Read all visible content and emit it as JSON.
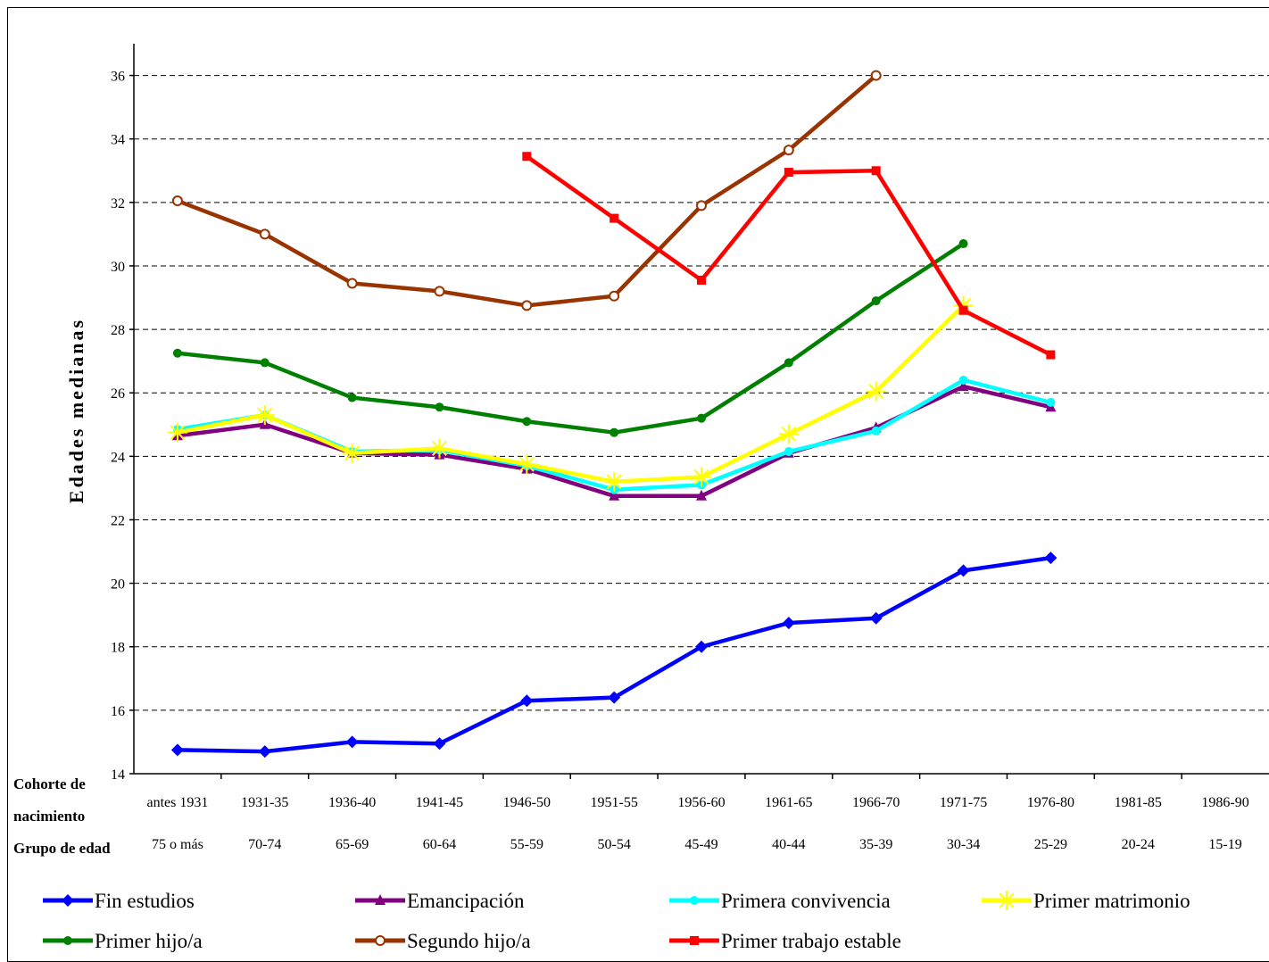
{
  "chart_data": {
    "type": "line",
    "ylabel": "Edades medianas",
    "ylim": [
      14,
      37
    ],
    "yticks": [
      14,
      16,
      18,
      20,
      22,
      24,
      26,
      28,
      30,
      32,
      34,
      36
    ],
    "grid": "horizontal dashed",
    "legend_position": "bottom",
    "row_labels": {
      "cohort": "Cohorte de nacimiento",
      "cohort_line1": "Cohorte de",
      "cohort_line2": "nacimiento",
      "age_group": "Grupo de edad"
    },
    "categories": [
      "antes 1931",
      "1931-35",
      "1936-40",
      "1941-45",
      "1946-50",
      "1951-55",
      "1956-60",
      "1961-65",
      "1966-70",
      "1971-75",
      "1976-80",
      "1981-85",
      "1986-90"
    ],
    "age_groups": [
      "75 o más",
      "70-74",
      "65-69",
      "60-64",
      "55-59",
      "50-54",
      "45-49",
      "40-44",
      "35-39",
      "30-34",
      "25-29",
      "20-24",
      "15-19"
    ],
    "series": [
      {
        "name": "Fin estudios",
        "color": "#0000FF",
        "marker": "diamond",
        "values": [
          14.75,
          14.7,
          15.0,
          14.95,
          16.3,
          16.4,
          18.0,
          18.75,
          18.9,
          20.4,
          20.8,
          null,
          null
        ]
      },
      {
        "name": "Emancipación",
        "color": "#800080",
        "marker": "triangle",
        "values": [
          24.65,
          25.0,
          24.1,
          24.05,
          23.6,
          22.75,
          22.75,
          24.1,
          24.9,
          26.2,
          25.55,
          null,
          null
        ]
      },
      {
        "name": "Primera convivencia",
        "color": "#00FFFF",
        "marker": "circle",
        "values": [
          24.85,
          25.3,
          24.15,
          24.2,
          23.7,
          22.95,
          23.1,
          24.15,
          24.8,
          26.4,
          25.7,
          null,
          null
        ]
      },
      {
        "name": "Primer matrimonio",
        "color": "#FFFF00",
        "marker": "asterisk",
        "values": [
          24.75,
          25.3,
          24.1,
          24.25,
          23.75,
          23.2,
          23.35,
          24.7,
          26.05,
          28.75,
          null,
          null,
          null
        ]
      },
      {
        "name": "Primer hijo/a",
        "color": "#008000",
        "marker": "circle",
        "values": [
          27.25,
          26.95,
          25.85,
          25.55,
          25.1,
          24.75,
          25.2,
          26.95,
          28.9,
          30.7,
          null,
          null,
          null
        ]
      },
      {
        "name": "Segundo hijo/a",
        "color": "#993300",
        "marker": "open-circle",
        "values": [
          32.05,
          31.0,
          29.45,
          29.2,
          28.75,
          29.05,
          31.9,
          33.65,
          36.0,
          null,
          null,
          null,
          null
        ]
      },
      {
        "name": "Primer trabajo estable",
        "color": "#FF0000",
        "marker": "square",
        "values": [
          null,
          null,
          null,
          null,
          33.45,
          31.5,
          29.55,
          32.95,
          33.0,
          28.6,
          27.2,
          null,
          null
        ]
      }
    ]
  }
}
